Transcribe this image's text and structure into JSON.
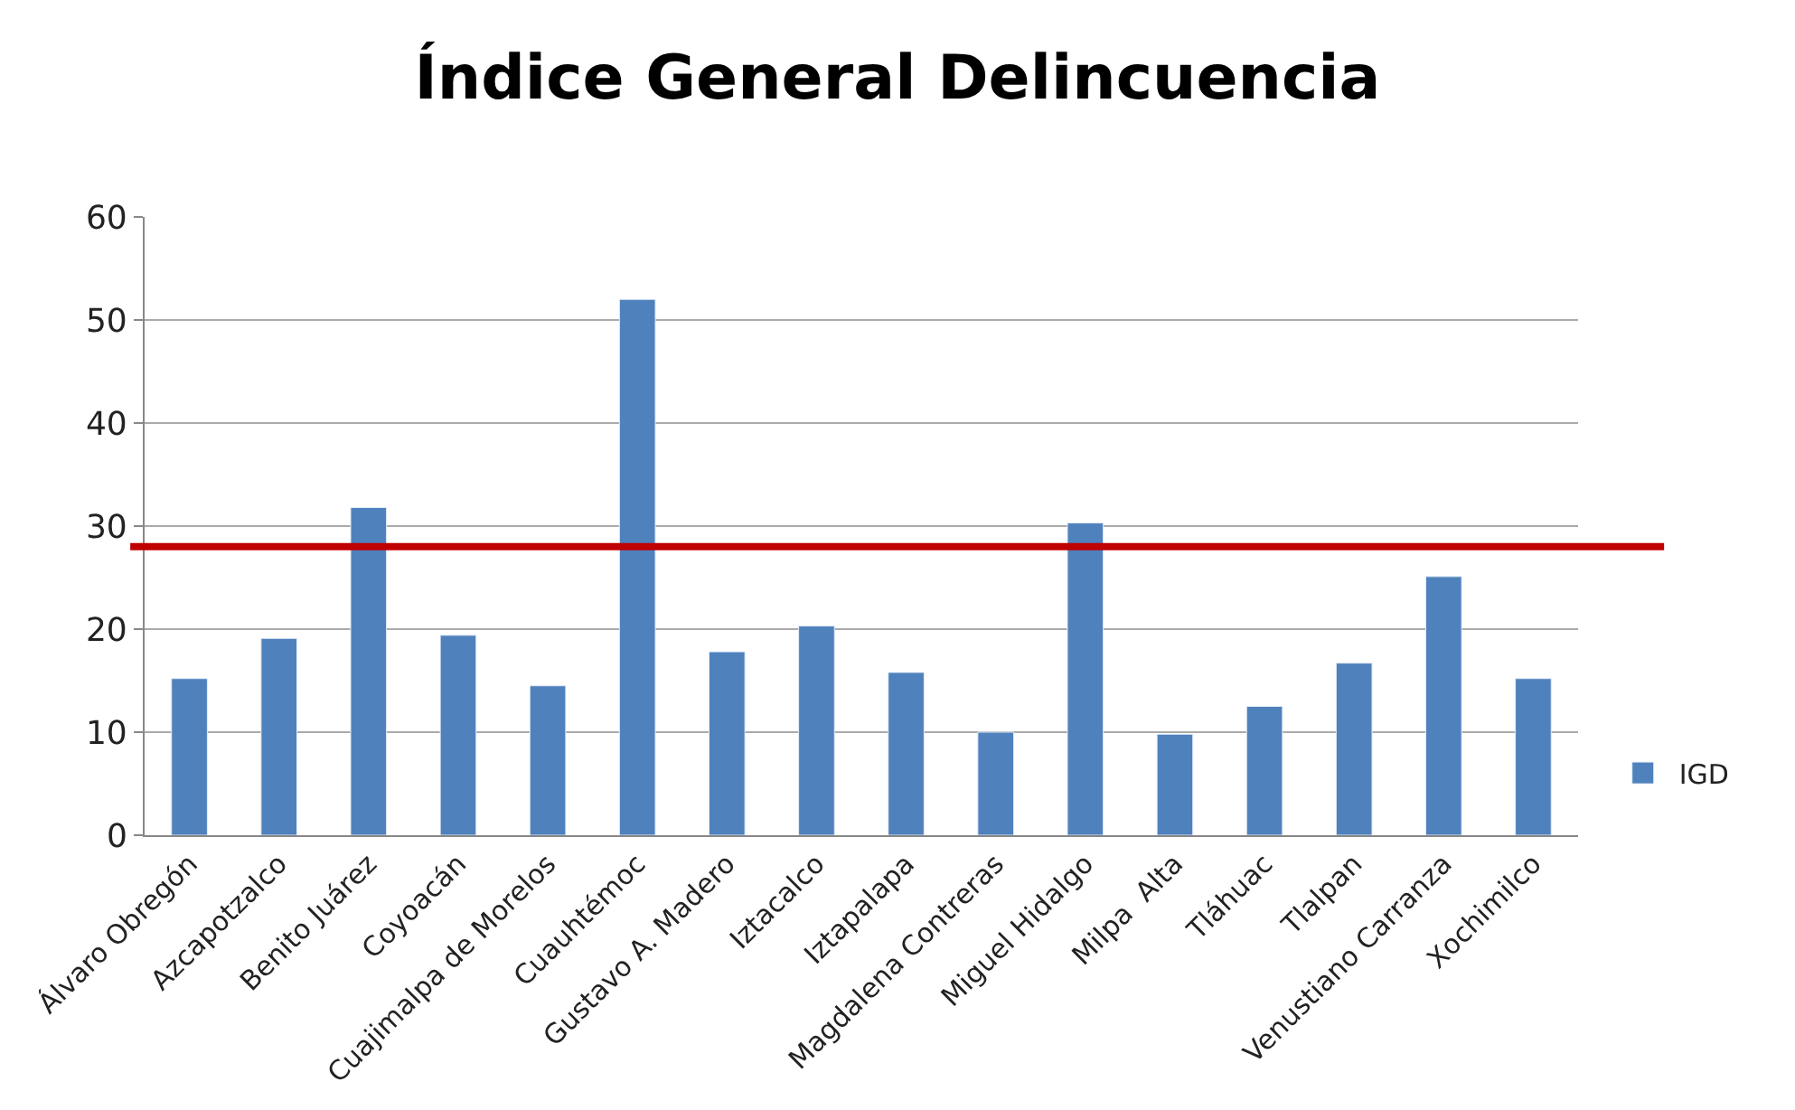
{
  "chart_data": {
    "type": "bar",
    "title": "Índice General Delincuencia",
    "categories": [
      "Álvaro Obregón",
      "Azcapotzalco",
      "Benito Juárez",
      "Coyoacán",
      "Cuajimalpa de Morelos",
      "Cuauhtémoc",
      "Gustavo A. Madero",
      "Iztacalco",
      "Iztapalapa",
      "Magdalena Contreras",
      "Miguel Hidalgo",
      "Milpa  Alta",
      "Tláhuac",
      "Tlalpan",
      "Venustiano Carranza",
      "Xochimilco"
    ],
    "series": [
      {
        "name": "IGD",
        "color": "#4f81bd",
        "values": [
          15.2,
          19.1,
          31.8,
          19.4,
          14.5,
          52.0,
          17.8,
          20.3,
          15.8,
          10.0,
          30.3,
          9.8,
          12.5,
          16.7,
          25.1,
          15.2
        ]
      }
    ],
    "ylim": [
      0,
      60
    ],
    "yticks": [
      0,
      10,
      20,
      30,
      40,
      50,
      60
    ],
    "grid": "y",
    "legend": "right",
    "ref_lines": [
      {
        "axis": "y",
        "value": 28,
        "color": "#c00000"
      }
    ]
  }
}
